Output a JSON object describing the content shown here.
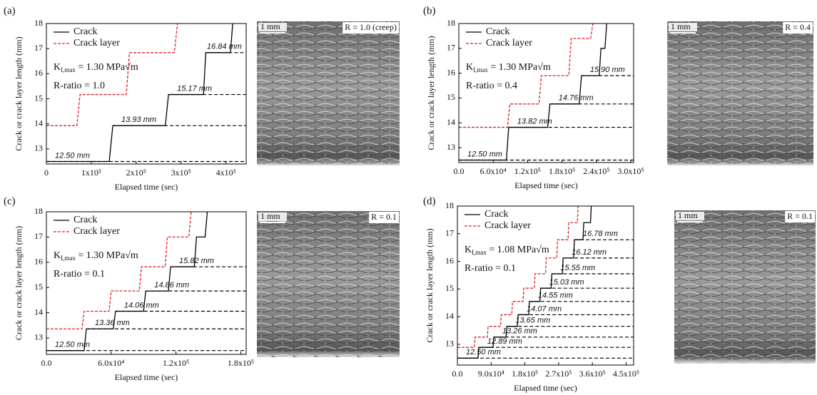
{
  "chart_data": [
    {
      "type": "line",
      "panel": "(a)",
      "xlabel": "Elapsed time (sec)",
      "ylabel": "Crack or crack layer length (mm)",
      "xlim": [
        0,
        445000
      ],
      "ylim": [
        12.4,
        18
      ],
      "xticks": [
        0,
        {
          "value": 100000,
          "label": "1x10⁵"
        },
        {
          "value": 200000,
          "label": "2x10⁵"
        },
        {
          "value": 300000,
          "label": "3x10⁵"
        },
        {
          "value": 400000,
          "label": "4x10⁵"
        }
      ],
      "yticks": [
        13,
        14,
        15,
        16,
        17,
        18
      ],
      "series": [
        {
          "name": "Crack",
          "color": "#000000",
          "x": [
            0,
            140000,
            148000,
            265000,
            272000,
            350000,
            355000,
            410000,
            415000
          ],
          "values": [
            12.5,
            12.5,
            13.93,
            13.93,
            15.17,
            15.17,
            16.84,
            16.84,
            18
          ]
        },
        {
          "name": "Crack layer",
          "color": "#e0202a",
          "x": [
            0,
            68000,
            75000,
            178000,
            185000,
            285000,
            292000
          ],
          "values": [
            13.93,
            13.93,
            15.17,
            15.17,
            16.84,
            16.84,
            18
          ]
        }
      ],
      "levels": [
        {
          "value": 12.5,
          "label": "12.50 mm"
        },
        {
          "value": 13.93,
          "label": "13.93 mm"
        },
        {
          "value": 15.17,
          "label": "15.17 mm"
        },
        {
          "value": 16.84,
          "label": "16.84 mm"
        }
      ],
      "annotation_k": {
        "symbol": "K",
        "subscript": "I,max",
        "text": " = 1.30 MPa√m"
      },
      "annotation_r": "R-ratio = 1.0",
      "image_scale": "1 mm",
      "image_label": "R = 1.0 (creep)"
    },
    {
      "type": "line",
      "panel": "(b)",
      "xlabel": "Elapsed time (sec)",
      "ylabel": "Crack or crack layer length (mm)",
      "xlim": [
        0,
        305000
      ],
      "ylim": [
        12.4,
        18
      ],
      "xticks": [
        {
          "value": 0,
          "label": "0.0"
        },
        {
          "value": 60000,
          "label": "6.0x10⁴"
        },
        {
          "value": 120000,
          "label": "1.2x10⁵"
        },
        {
          "value": 180000,
          "label": "1.8x10⁵"
        },
        {
          "value": 240000,
          "label": "2.4x10⁵"
        },
        {
          "value": 300000,
          "label": "3.0x10⁵"
        }
      ],
      "yticks": [
        13,
        14,
        15,
        16,
        17,
        18
      ],
      "series": [
        {
          "name": "Crack",
          "color": "#000000",
          "x": [
            0,
            83000,
            87000,
            155000,
            159000,
            210000,
            214000,
            245000,
            248000,
            255000,
            258000
          ],
          "values": [
            12.5,
            12.5,
            13.82,
            13.82,
            14.76,
            14.76,
            15.9,
            15.9,
            17.0,
            17.0,
            18
          ]
        },
        {
          "name": "Crack layer",
          "color": "#e0202a",
          "x": [
            0,
            85000,
            89000,
            140000,
            144000,
            192000,
            196000,
            230000,
            234000
          ],
          "values": [
            13.82,
            13.82,
            14.76,
            14.76,
            15.9,
            15.9,
            17.4,
            17.4,
            18
          ]
        }
      ],
      "levels": [
        {
          "value": 12.5,
          "label": "12.50 mm"
        },
        {
          "value": 13.82,
          "label": "13.82 mm"
        },
        {
          "value": 14.76,
          "label": "14.76 mm"
        },
        {
          "value": 15.9,
          "label": "15.90 mm"
        }
      ],
      "annotation_k": {
        "symbol": "K",
        "subscript": "I,max",
        "text": " = 1.30 MPa√m"
      },
      "annotation_r": "R-ratio = 0.4",
      "image_scale": "1 mm",
      "image_label": "R = 0.4"
    },
    {
      "type": "line",
      "panel": "(c)",
      "xlabel": "Elapsed time (sec)",
      "ylabel": "Crack or crack layer length (mm)",
      "xlim": [
        0,
        185000
      ],
      "ylim": [
        12.35,
        18
      ],
      "xticks": [
        {
          "value": 0,
          "label": "0.0"
        },
        {
          "value": 60000,
          "label": "6.0x10⁴"
        },
        {
          "value": 120000,
          "label": "1.2x10⁵"
        },
        {
          "value": 180000,
          "label": "1.8x10⁵"
        }
      ],
      "yticks": [
        13,
        14,
        15,
        16,
        17,
        18
      ],
      "series": [
        {
          "name": "Crack",
          "color": "#000000",
          "x": [
            0,
            35000,
            37000,
            62000,
            64000,
            90000,
            92000,
            113000,
            115000,
            137000,
            139000,
            147000,
            149000
          ],
          "values": [
            12.5,
            12.5,
            13.36,
            13.36,
            14.06,
            14.06,
            14.86,
            14.86,
            15.82,
            15.82,
            17.0,
            17.0,
            18
          ]
        },
        {
          "name": "Crack layer",
          "color": "#e0202a",
          "x": [
            0,
            33000,
            35000,
            58000,
            60000,
            86000,
            88000,
            110000,
            112000,
            132000,
            134000
          ],
          "values": [
            13.36,
            13.36,
            14.06,
            14.06,
            14.86,
            14.86,
            15.82,
            15.82,
            17.0,
            17.0,
            18
          ]
        }
      ],
      "levels": [
        {
          "value": 12.5,
          "label": "12.50 mm"
        },
        {
          "value": 13.36,
          "label": "13.36 mm"
        },
        {
          "value": 14.06,
          "label": "14.06 mm"
        },
        {
          "value": 14.86,
          "label": "14.86 mm"
        },
        {
          "value": 15.82,
          "label": "15.82 mm"
        }
      ],
      "annotation_k": {
        "symbol": "K",
        "subscript": "I,max",
        "text": " = 1.30 MPa√m"
      },
      "annotation_r": "R-ratio = 0.1",
      "image_scale": "1 mm",
      "image_label": "R = 0.1"
    },
    {
      "type": "line",
      "panel": "(d)",
      "xlabel": "Elapsed time (sec)",
      "ylabel": "Crack or crack layer length (mm)",
      "xlim": [
        0,
        470000
      ],
      "ylim": [
        12.25,
        18
      ],
      "xticks": [
        {
          "value": 0,
          "label": "0.0"
        },
        {
          "value": 90000,
          "label": "9.0x10⁴"
        },
        {
          "value": 180000,
          "label": "1.8x10⁵"
        },
        {
          "value": 270000,
          "label": "2.7x10⁵"
        },
        {
          "value": 360000,
          "label": "3.6x10⁵"
        },
        {
          "value": 450000,
          "label": "4.5x10⁵"
        }
      ],
      "yticks": [
        13,
        14,
        15,
        16,
        17,
        18
      ],
      "series": [
        {
          "name": "Crack",
          "color": "#000000",
          "x": [
            0,
            55000,
            57000,
            95000,
            97000,
            130000,
            132000,
            160000,
            162000,
            190000,
            192000,
            220000,
            222000,
            250000,
            252000,
            280000,
            282000,
            310000,
            312000,
            335000,
            337000,
            355000,
            357000
          ],
          "values": [
            12.5,
            12.5,
            12.89,
            12.89,
            13.26,
            13.26,
            13.65,
            13.65,
            14.07,
            14.07,
            14.55,
            14.55,
            15.03,
            15.03,
            15.55,
            15.55,
            16.12,
            16.12,
            16.78,
            16.78,
            17.4,
            17.4,
            18
          ]
        },
        {
          "name": "Crack layer",
          "color": "#e0202a",
          "x": [
            0,
            45000,
            47000,
            80000,
            82000,
            115000,
            117000,
            145000,
            147000,
            175000,
            177000,
            205000,
            207000,
            235000,
            237000,
            265000,
            267000,
            295000,
            297000,
            320000,
            322000
          ],
          "values": [
            12.89,
            12.89,
            13.26,
            13.26,
            13.65,
            13.65,
            14.07,
            14.07,
            14.55,
            14.55,
            15.03,
            15.03,
            15.55,
            15.55,
            16.12,
            16.12,
            16.78,
            16.78,
            17.4,
            17.4,
            18
          ]
        }
      ],
      "levels": [
        {
          "value": 12.5,
          "label": "12.50 mm"
        },
        {
          "value": 12.89,
          "label": "12.89 mm"
        },
        {
          "value": 13.26,
          "label": "13.26 mm"
        },
        {
          "value": 13.65,
          "label": "13.65 mm"
        },
        {
          "value": 14.07,
          "label": "14.07 mm"
        },
        {
          "value": 14.55,
          "label": "14.55 mm"
        },
        {
          "value": 15.03,
          "label": "15.03 mm"
        },
        {
          "value": 15.55,
          "label": "15.55 mm"
        },
        {
          "value": 16.12,
          "label": "16.12 mm"
        },
        {
          "value": 16.78,
          "label": "16.78 mm"
        }
      ],
      "annotation_k": {
        "symbol": "K",
        "subscript": "I,max",
        "text": " = 1.08 MPa√m"
      },
      "annotation_r": "R-ratio = 0.1",
      "image_scale": "1 mm",
      "image_label": "R = 0.1"
    }
  ]
}
